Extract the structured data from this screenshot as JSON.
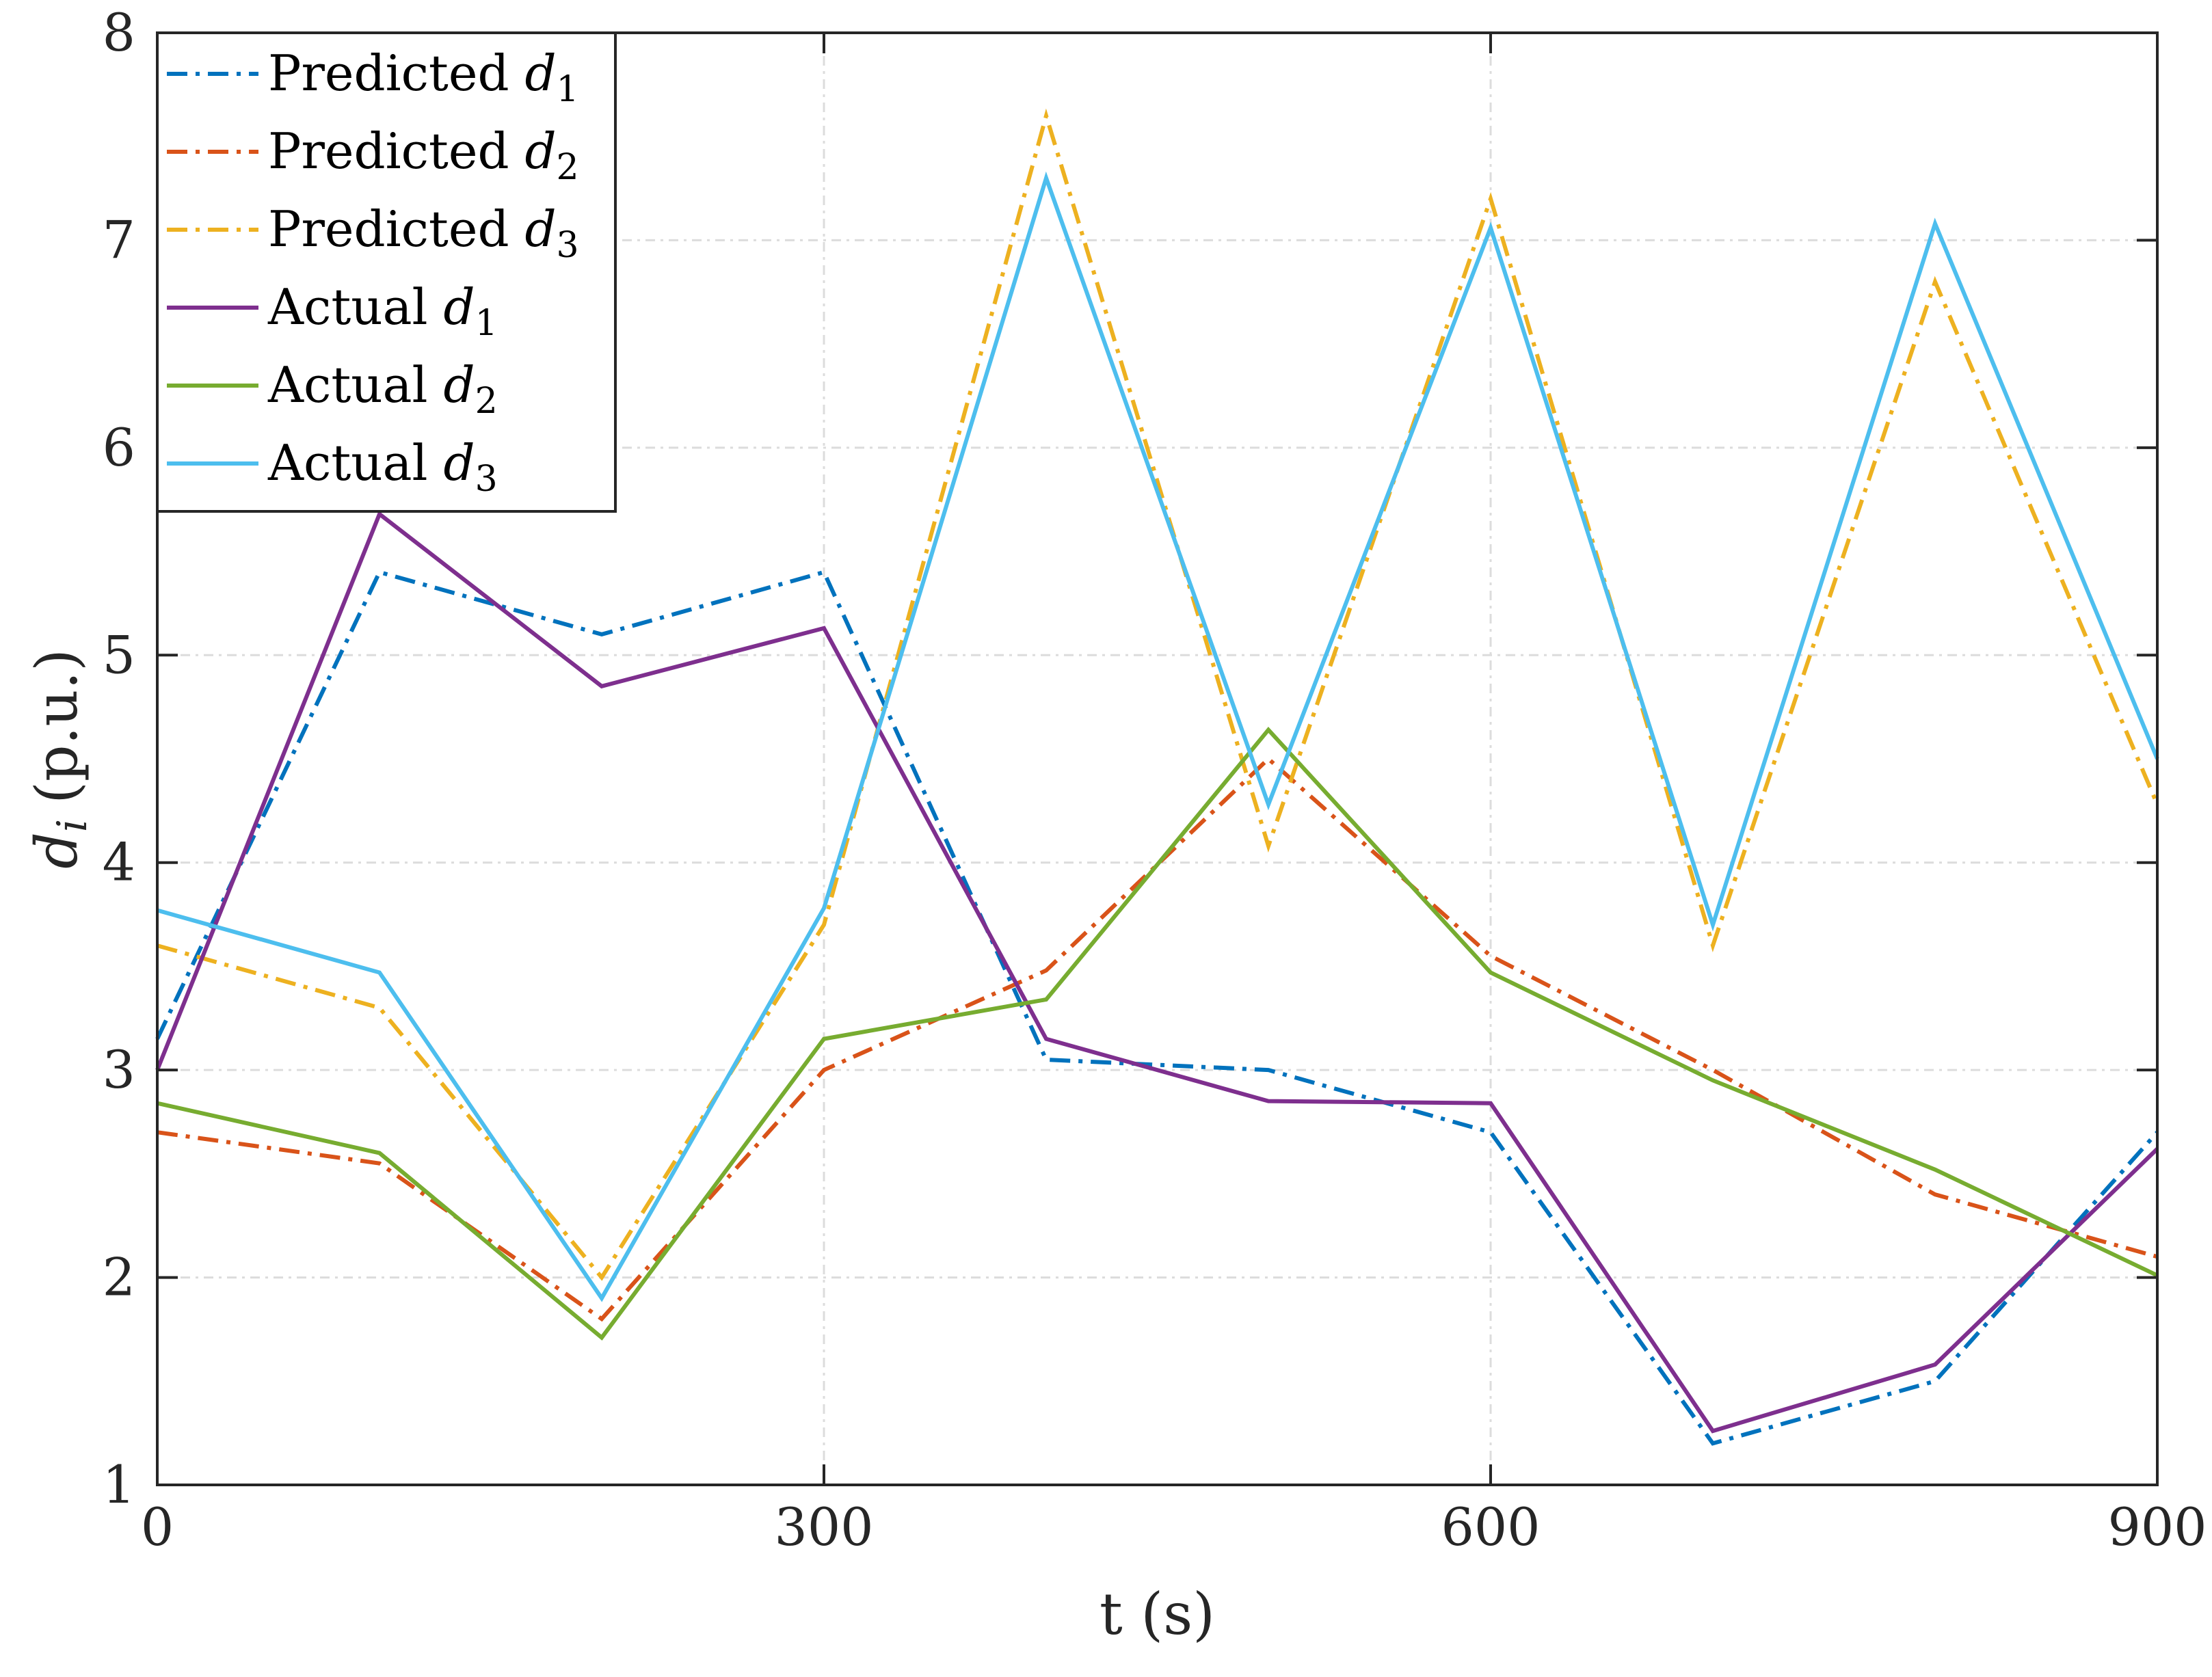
{
  "chart_data": {
    "type": "line",
    "xlabel": "t (s)",
    "ylabel_main": "d",
    "ylabel_sub": "i",
    "ylabel_unit": "(p.u.)",
    "xlim": [
      0,
      900
    ],
    "ylim": [
      1,
      8
    ],
    "xticks": [
      0,
      300,
      600,
      900
    ],
    "yticks": [
      1,
      2,
      3,
      4,
      5,
      6,
      7,
      8
    ],
    "grid": true,
    "legend_position": "top-left",
    "x": [
      0,
      100,
      200,
      300,
      400,
      500,
      600,
      700,
      800,
      900
    ],
    "series": [
      {
        "name": "Predicted d1",
        "label_main": "Predicted ",
        "label_var": "d",
        "label_sub": "1",
        "color": "#0072BD",
        "style": "dashdot",
        "values": [
          3.15,
          5.4,
          5.1,
          5.4,
          3.05,
          3.0,
          2.7,
          1.2,
          1.5,
          2.7
        ]
      },
      {
        "name": "Predicted d2",
        "label_main": "Predicted ",
        "label_var": "d",
        "label_sub": "2",
        "color": "#D95319",
        "style": "dashdot",
        "values": [
          2.7,
          2.55,
          1.8,
          3.0,
          3.48,
          4.5,
          3.55,
          3.0,
          2.4,
          2.1
        ]
      },
      {
        "name": "Predicted d3",
        "label_main": "Predicted ",
        "label_var": "d",
        "label_sub": "3",
        "color": "#EDB120",
        "style": "dashdot",
        "values": [
          3.6,
          3.3,
          2.0,
          3.7,
          7.6,
          4.08,
          7.2,
          3.6,
          6.8,
          4.28
        ]
      },
      {
        "name": "Actual d1",
        "label_main": "Actual ",
        "label_var": "d",
        "label_sub": "1",
        "color": "#7E2F8E",
        "style": "solid",
        "values": [
          3.0,
          5.68,
          4.85,
          5.13,
          3.15,
          2.85,
          2.84,
          1.26,
          1.58,
          2.62
        ]
      },
      {
        "name": "Actual d2",
        "label_main": "Actual ",
        "label_var": "d",
        "label_sub": "2",
        "color": "#77AC30",
        "style": "solid",
        "values": [
          2.84,
          2.6,
          1.71,
          3.15,
          3.34,
          4.64,
          3.47,
          2.95,
          2.52,
          2.01
        ]
      },
      {
        "name": "Actual d3",
        "label_main": "Actual ",
        "label_var": "d",
        "label_sub": "3",
        "color": "#4DBEEE",
        "style": "solid",
        "values": [
          3.77,
          3.47,
          1.9,
          3.78,
          7.3,
          4.28,
          7.06,
          3.7,
          7.08,
          4.5
        ]
      }
    ]
  }
}
